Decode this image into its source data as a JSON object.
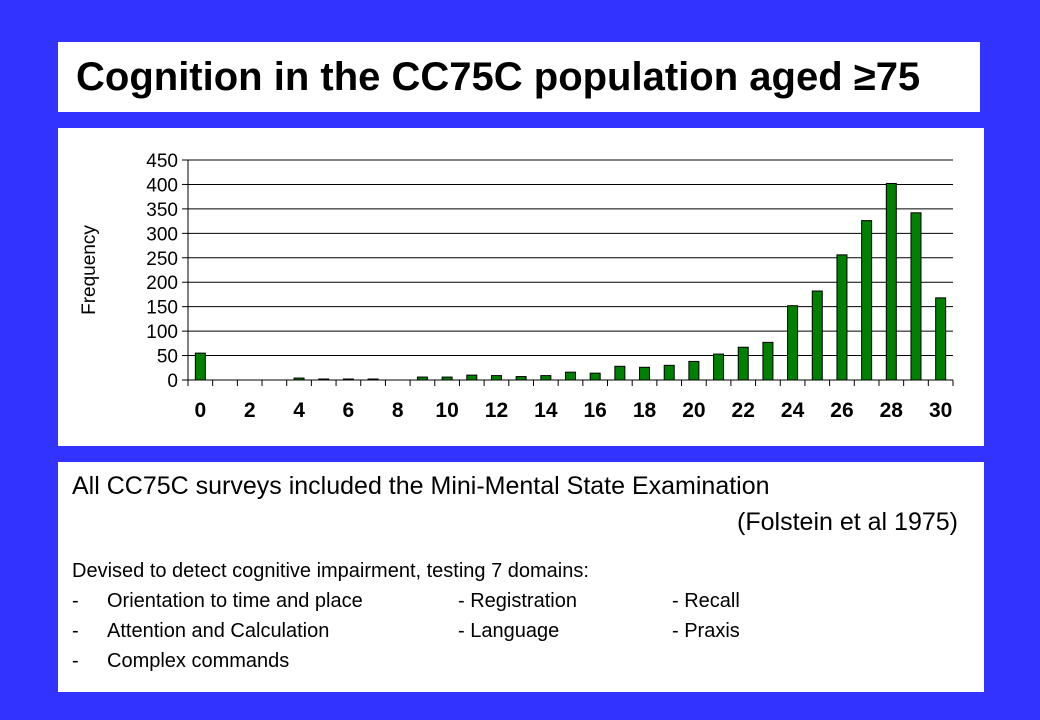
{
  "title": "Cognition in the CC75C population aged ≥75",
  "chart_data": {
    "type": "bar",
    "ylabel": "Frequency",
    "xlabel": "",
    "ylim": [
      0,
      450
    ],
    "yticks": [
      0,
      50,
      100,
      150,
      200,
      250,
      300,
      350,
      400,
      450
    ],
    "xtick_labels": [
      "0",
      "2",
      "4",
      "6",
      "8",
      "10",
      "12",
      "14",
      "16",
      "18",
      "20",
      "22",
      "24",
      "26",
      "28",
      "30"
    ],
    "categories": [
      0,
      1,
      2,
      3,
      4,
      5,
      6,
      7,
      8,
      9,
      10,
      11,
      12,
      13,
      14,
      15,
      16,
      17,
      18,
      19,
      20,
      21,
      22,
      23,
      24,
      25,
      26,
      27,
      28,
      29,
      30
    ],
    "values": [
      55,
      0,
      0,
      0,
      4,
      2,
      2,
      2,
      0,
      6,
      6,
      10,
      9,
      7,
      9,
      16,
      14,
      28,
      26,
      30,
      38,
      53,
      67,
      77,
      152,
      182,
      256,
      326,
      402,
      342,
      168
    ],
    "bar_color": "#008000",
    "grid": "horizontal"
  },
  "text": {
    "intro_line1": "All CC75C surveys included the Mini-Mental State Examination",
    "intro_line2": "(Folstein et al 1975)",
    "desc": "Devised to detect cognitive impairment, testing 7 domains:",
    "rows": [
      {
        "dash": "-",
        "c1": "Orientation to time and place",
        "c2": "- Registration",
        "c3": "- Recall"
      },
      {
        "dash": "-",
        "c1": "Attention and Calculation",
        "c2": "- Language",
        "c3": "- Praxis"
      },
      {
        "dash": "-",
        "c1": "Complex commands"
      }
    ]
  }
}
